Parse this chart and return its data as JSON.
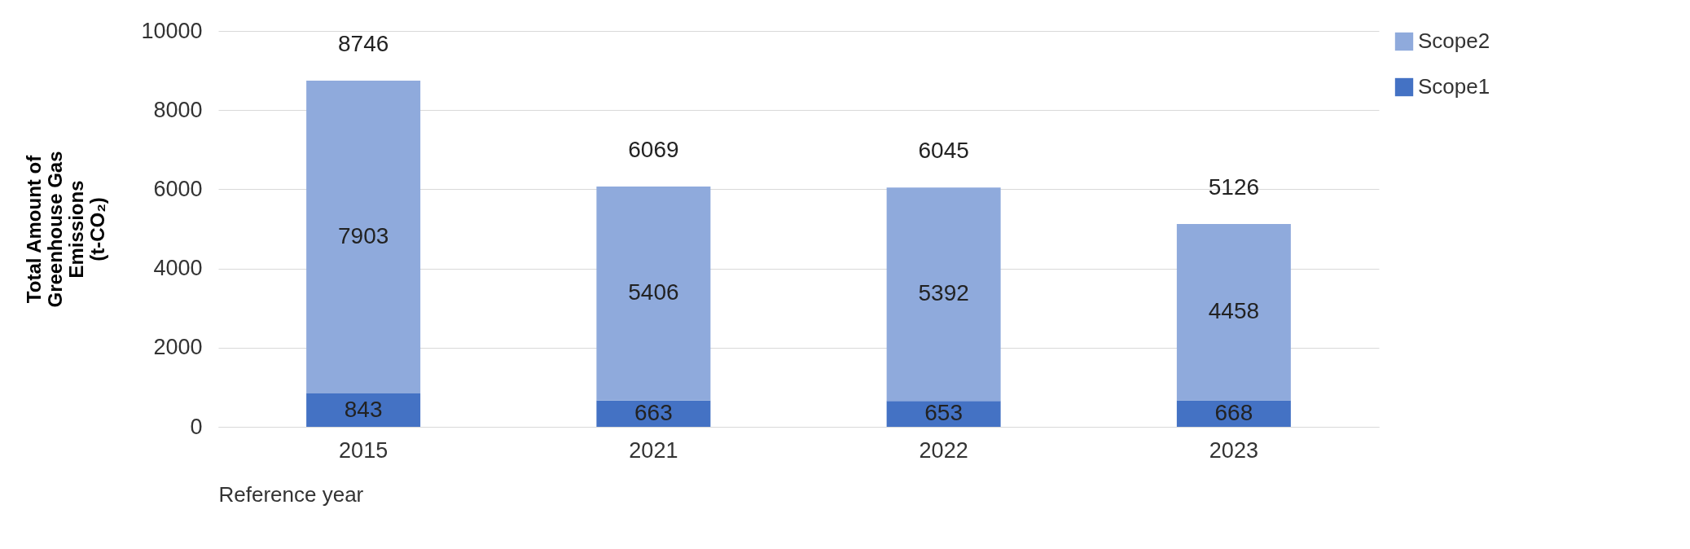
{
  "chart_data": {
    "type": "bar",
    "stacked": true,
    "xlabel": "Reference year",
    "ylabel": "Total Amount of Greenhouse Gas Emissions (t-CO₂)",
    "categories": [
      "2015",
      "2021",
      "2022",
      "2023"
    ],
    "series": [
      {
        "name": "Scope1",
        "color": "#4472c4",
        "values": [
          843,
          663,
          653,
          668
        ]
      },
      {
        "name": "Scope2",
        "color": "#8faadc",
        "values": [
          7903,
          5406,
          5392,
          4458
        ]
      }
    ],
    "totals": [
      "8746",
      "6069",
      "6045",
      "5126"
    ],
    "ylim": [
      0,
      10000
    ],
    "yticks": [
      0,
      2000,
      4000,
      6000,
      8000,
      10000
    ],
    "grid": "y",
    "legend": "right",
    "data_labels": true
  }
}
